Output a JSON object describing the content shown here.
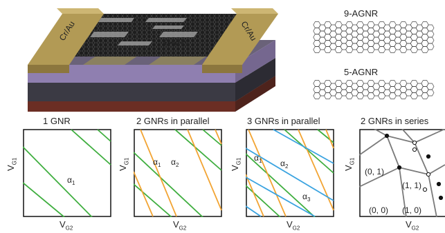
{
  "device": {
    "contact_left": "Cr/Au",
    "contact_right": "Cr/Au",
    "channel_label": "GNRs"
  },
  "molecules": {
    "top_label": "9-AGNR",
    "bottom_label": "5-AGNR"
  },
  "panels": [
    {
      "title": "1 GNR",
      "xlabel": "V",
      "xlabel_sub": "G2",
      "ylabel": "V",
      "ylabel_sub": "G1",
      "annotations": [
        {
          "text": "α",
          "sub": "1"
        }
      ]
    },
    {
      "title": "2 GNRs in parallel",
      "xlabel": "V",
      "xlabel_sub": "G2",
      "ylabel": "V",
      "ylabel_sub": "G1",
      "annotations": [
        {
          "text": "α",
          "sub": "1"
        },
        {
          "text": "α",
          "sub": "2"
        }
      ]
    },
    {
      "title": "3 GNRs in parallel",
      "xlabel": "V",
      "xlabel_sub": "G2",
      "ylabel": "V",
      "ylabel_sub": "G1",
      "annotations": [
        {
          "text": "α",
          "sub": "1"
        },
        {
          "text": "α",
          "sub": "2"
        },
        {
          "text": "α",
          "sub": "3"
        }
      ]
    },
    {
      "title": "2 GNRs in series",
      "xlabel": "V",
      "xlabel_sub": "G2",
      "ylabel": "V",
      "ylabel_sub": "G1",
      "cells": [
        "(0, 1)",
        "(1, 1)",
        "(0, 0)",
        "(1, 0)"
      ]
    }
  ],
  "colors": {
    "green": "#3fae3f",
    "orange": "#f2a433",
    "blue": "#3aa3e0",
    "gray": "#7a7a7a",
    "gold": "#b29a55",
    "purple": "#8f7fb0",
    "substrate": "#6b2e24"
  }
}
